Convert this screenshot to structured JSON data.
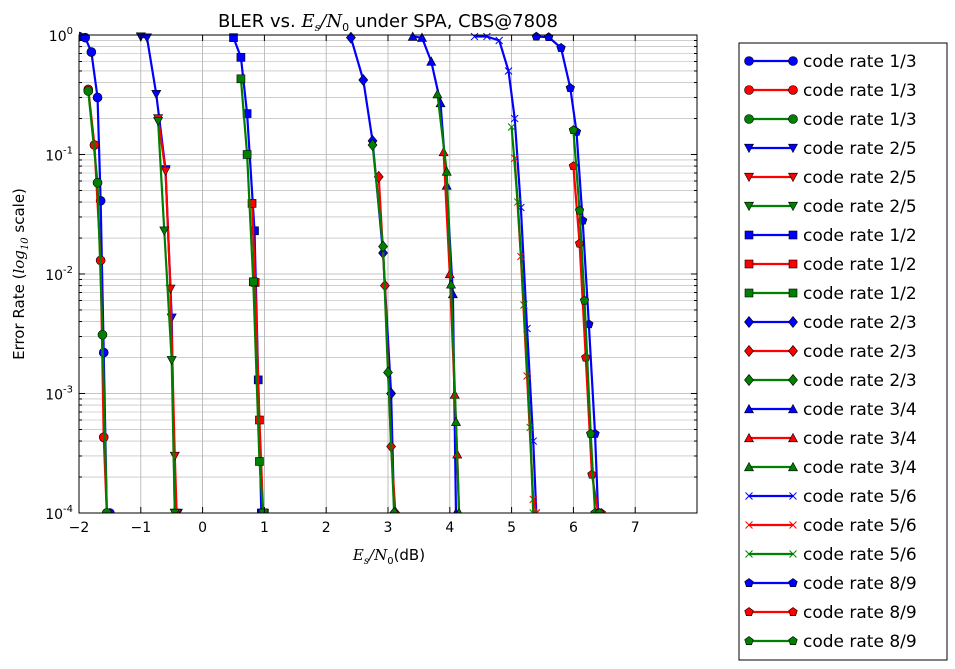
{
  "chart_data": {
    "type": "line",
    "title": "BLER vs. Es/N0 under SPA, CBS@7808",
    "title_parts": {
      "prefix": "BLER vs. ",
      "main": "E",
      "sub": "s",
      "slash": "/",
      "main2": "N",
      "sub2": "0",
      "suffix": " under SPA, CBS@7808"
    },
    "xlabel": "Es/N0(dB)",
    "xlabel_parts": {
      "main": "E",
      "sub": "s",
      "slash": "/",
      "main2": "N",
      "sub2": "0",
      "suffix": "(dB)"
    },
    "ylabel": "Error Rate (log10 scale)",
    "ylabel_parts": {
      "prefix": "Error Rate (",
      "main": "log",
      "sub": "10",
      "suffix": " scale)"
    },
    "x_scale": "linear",
    "y_scale": "log",
    "xlim": [
      -2,
      8
    ],
    "ylim": [
      0.0001,
      1
    ],
    "x_ticks": [
      -2,
      -1,
      0,
      1,
      2,
      3,
      4,
      5,
      6,
      7
    ],
    "x_tick_labels": [
      "−2",
      "−1",
      "0",
      "1",
      "2",
      "3",
      "4",
      "5",
      "6",
      "7"
    ],
    "y_ticks": [
      0.0001,
      0.001,
      0.01,
      0.1,
      1
    ],
    "y_tick_labels": [
      {
        "base": "10",
        "exp": "-4"
      },
      {
        "base": "10",
        "exp": "-3"
      },
      {
        "base": "10",
        "exp": "-2"
      },
      {
        "base": "10",
        "exp": "-1"
      },
      {
        "base": "10",
        "exp": "0"
      }
    ],
    "grid": true,
    "legend_position": "outside-right",
    "colors": {
      "blue": "#0000ff",
      "red": "#ff0000",
      "green": "#008000"
    },
    "series": [
      {
        "name": "code rate 1/3",
        "color": "blue",
        "marker": "circle",
        "x": [
          -2.0,
          -1.9,
          -1.8,
          -1.7,
          -1.65,
          -1.6,
          -1.55,
          -1.5
        ],
        "y": [
          0.97,
          0.95,
          0.72,
          0.3,
          0.041,
          0.0022,
          0.0001,
          0.0001
        ]
      },
      {
        "name": "code rate 1/3",
        "color": "red",
        "marker": "circle",
        "x": [
          -1.85,
          -1.75,
          -1.65,
          -1.6,
          -1.55
        ],
        "y": [
          0.35,
          0.12,
          0.013,
          0.00043,
          0.0001
        ]
      },
      {
        "name": "code rate 1/3",
        "color": "green",
        "marker": "circle",
        "x": [
          -1.85,
          -1.7,
          -1.62,
          -1.55
        ],
        "y": [
          0.34,
          0.058,
          0.0031,
          0.0001
        ]
      },
      {
        "name": "code rate 2/5",
        "color": "blue",
        "marker": "triangle-down",
        "x": [
          -1.0,
          -0.9,
          -0.75,
          -0.6,
          -0.5,
          -0.45,
          -0.4
        ],
        "y": [
          0.97,
          0.95,
          0.32,
          0.075,
          0.0043,
          0.0001,
          0.0001
        ]
      },
      {
        "name": "code rate 2/5",
        "color": "red",
        "marker": "triangle-down",
        "x": [
          -0.72,
          -0.6,
          -0.52,
          -0.45,
          -0.42
        ],
        "y": [
          0.2,
          0.073,
          0.0075,
          0.0003,
          0.0001
        ]
      },
      {
        "name": "code rate 2/5",
        "color": "green",
        "marker": "triangle-down",
        "x": [
          -0.72,
          -0.62,
          -0.5,
          -0.45
        ],
        "y": [
          0.19,
          0.023,
          0.0019,
          0.0001
        ]
      },
      {
        "name": "code rate 1/2",
        "color": "blue",
        "marker": "square",
        "x": [
          0.5,
          0.62,
          0.72,
          0.84,
          0.9,
          0.95
        ],
        "y": [
          0.95,
          0.65,
          0.22,
          0.023,
          0.0013,
          0.0001
        ]
      },
      {
        "name": "code rate 1/2",
        "color": "red",
        "marker": "square",
        "x": [
          0.8,
          0.85,
          0.92,
          0.98,
          1.0
        ],
        "y": [
          0.039,
          0.0085,
          0.0006,
          0.0001,
          0.0001
        ]
      },
      {
        "name": "code rate 1/2",
        "color": "green",
        "marker": "square",
        "x": [
          0.62,
          0.72,
          0.82,
          0.92,
          0.98
        ],
        "y": [
          0.43,
          0.1,
          0.0086,
          0.00027,
          0.0001
        ]
      },
      {
        "name": "code rate 2/3",
        "color": "blue",
        "marker": "diamond",
        "x": [
          2.4,
          2.6,
          2.75,
          2.92,
          3.05,
          3.1
        ],
        "y": [
          0.95,
          0.42,
          0.13,
          0.015,
          0.001,
          0.0001
        ]
      },
      {
        "name": "code rate 2/3",
        "color": "red",
        "marker": "diamond",
        "x": [
          2.85,
          2.95,
          3.05,
          3.12
        ],
        "y": [
          0.065,
          0.008,
          0.00036,
          0.0001
        ]
      },
      {
        "name": "code rate 2/3",
        "color": "green",
        "marker": "diamond",
        "x": [
          2.75,
          2.92,
          3.0,
          3.1
        ],
        "y": [
          0.12,
          0.017,
          0.0015,
          0.0001
        ]
      },
      {
        "name": "code rate 3/4",
        "color": "blue",
        "marker": "triangle-up",
        "x": [
          3.4,
          3.55,
          3.7,
          3.85,
          3.95,
          4.05,
          4.1
        ],
        "y": [
          0.97,
          0.95,
          0.6,
          0.27,
          0.055,
          0.0068,
          0.0001
        ]
      },
      {
        "name": "code rate 3/4",
        "color": "red",
        "marker": "triangle-up",
        "x": [
          3.9,
          4.0,
          4.08,
          4.12,
          4.15
        ],
        "y": [
          0.105,
          0.01,
          0.00098,
          0.00031,
          0.0001
        ]
      },
      {
        "name": "code rate 3/4",
        "color": "green",
        "marker": "triangle-up",
        "x": [
          3.8,
          3.95,
          4.02,
          4.1,
          4.15
        ],
        "y": [
          0.32,
          0.072,
          0.0082,
          0.00058,
          0.0001
        ]
      },
      {
        "name": "code rate 5/6",
        "color": "blue",
        "marker": "x",
        "x": [
          4.4,
          4.6,
          4.8,
          4.95,
          5.05,
          5.15,
          5.25,
          5.35,
          5.4
        ],
        "y": [
          0.97,
          0.97,
          0.9,
          0.5,
          0.2,
          0.036,
          0.0035,
          0.0004,
          0.0001
        ]
      },
      {
        "name": "code rate 5/6",
        "color": "red",
        "marker": "x",
        "x": [
          5.05,
          5.15,
          5.25,
          5.35,
          5.4
        ],
        "y": [
          0.093,
          0.014,
          0.0014,
          0.00013,
          0.0001
        ]
      },
      {
        "name": "code rate 5/6",
        "color": "green",
        "marker": "x",
        "x": [
          5.0,
          5.1,
          5.2,
          5.3,
          5.35
        ],
        "y": [
          0.17,
          0.04,
          0.0055,
          0.00052,
          0.0001
        ]
      },
      {
        "name": "code rate 8/9",
        "color": "blue",
        "marker": "pentagon",
        "x": [
          5.4,
          5.6,
          5.8,
          5.95,
          6.05,
          6.15,
          6.25,
          6.35,
          6.4
        ],
        "y": [
          0.97,
          0.96,
          0.78,
          0.36,
          0.155,
          0.028,
          0.0038,
          0.00046,
          0.0001
        ]
      },
      {
        "name": "code rate 8/9",
        "color": "red",
        "marker": "pentagon",
        "x": [
          6.0,
          6.1,
          6.2,
          6.3,
          6.4,
          6.45
        ],
        "y": [
          0.08,
          0.018,
          0.002,
          0.00021,
          0.0001,
          0.0001
        ]
      },
      {
        "name": "code rate 8/9",
        "color": "green",
        "marker": "pentagon",
        "x": [
          6.0,
          6.1,
          6.18,
          6.28,
          6.35,
          6.42
        ],
        "y": [
          0.16,
          0.034,
          0.006,
          0.00046,
          0.0001,
          0.0001
        ]
      }
    ]
  }
}
